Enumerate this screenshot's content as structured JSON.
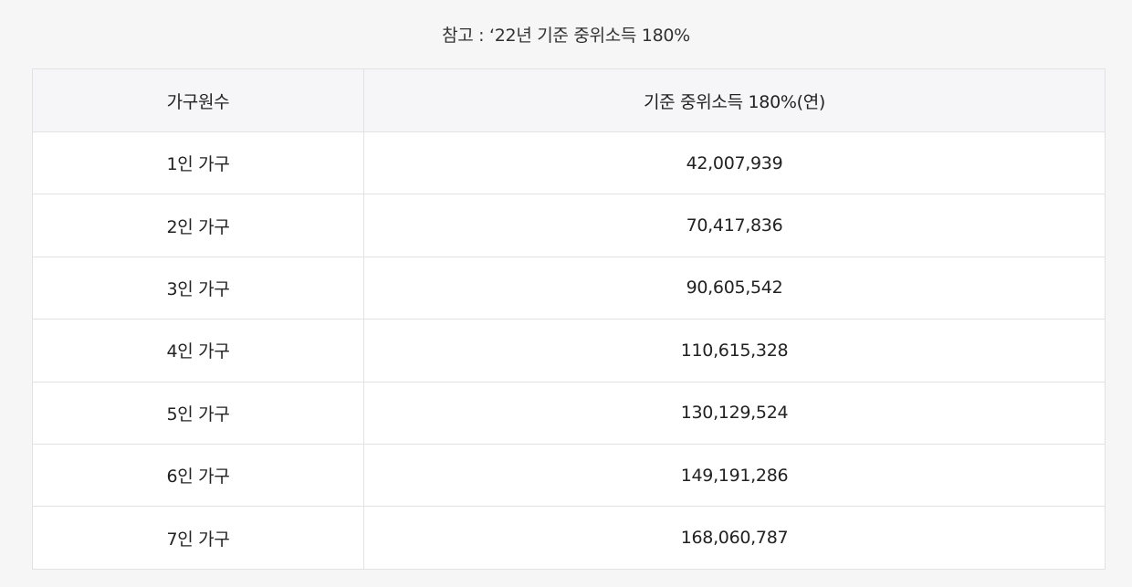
{
  "caption": "참고 : ‘22년 기준 중위소득 180%",
  "table": {
    "headers": {
      "household": "가구원수",
      "income": "기준 중위소득 180%(연)"
    },
    "rows": [
      {
        "household": "1인 가구",
        "income": "42,007,939"
      },
      {
        "household": "2인 가구",
        "income": "70,417,836"
      },
      {
        "household": "3인 가구",
        "income": "90,605,542"
      },
      {
        "household": "4인 가구",
        "income": "110,615,328"
      },
      {
        "household": "5인 가구",
        "income": "130,129,524"
      },
      {
        "household": "6인 가구",
        "income": "149,191,286"
      },
      {
        "household": "7인 가구",
        "income": "168,060,787"
      }
    ]
  }
}
